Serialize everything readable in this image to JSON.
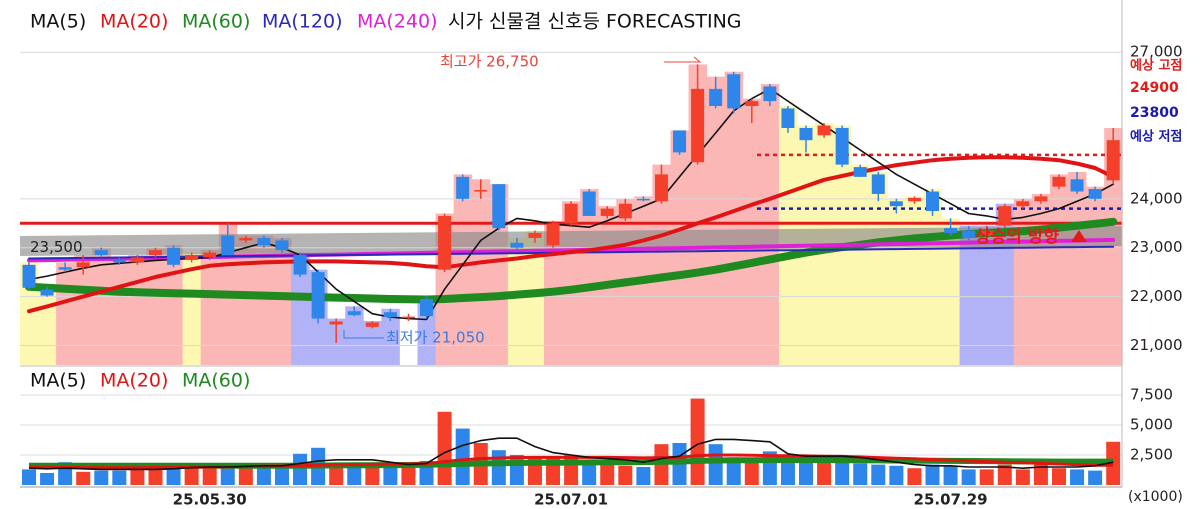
{
  "chart_data": [
    {
      "type": "candlestick",
      "title": "시가 신물결 신호등 FORECASTING",
      "open": [
        22650,
        22140,
        22600,
        22600,
        22950,
        22750,
        22700,
        22850,
        23000,
        22750,
        22800,
        23250,
        23150,
        23200,
        23150,
        22850,
        22500,
        21430,
        21700,
        21380,
        21680,
        21560,
        21950,
        22550,
        24450,
        24150,
        24300,
        23100,
        23200,
        23050,
        23500,
        24150,
        23650,
        23600,
        24000,
        23950,
        25400,
        24750,
        26250,
        26550,
        25900,
        26300,
        25850,
        25450,
        25300,
        25450,
        24650,
        24500,
        23950,
        23950,
        24150,
        23400,
        23350,
        23250,
        23450,
        23850,
        23950,
        24250,
        24400,
        24200,
        24380
      ],
      "high": [
        22700,
        22200,
        22700,
        22850,
        23000,
        22800,
        22850,
        23000,
        23050,
        22900,
        22950,
        23500,
        23250,
        23250,
        23200,
        22900,
        22550,
        21550,
        21800,
        21500,
        21750,
        21650,
        22000,
        23700,
        24500,
        24400,
        24300,
        23200,
        23350,
        23550,
        23950,
        24200,
        23850,
        24000,
        24050,
        24700,
        25400,
        26750,
        26500,
        26600,
        26050,
        26350,
        25900,
        25500,
        25550,
        25500,
        24700,
        24550,
        24000,
        24050,
        24200,
        23600,
        23450,
        23450,
        23900,
        24000,
        24100,
        24500,
        24550,
        24250,
        25450
      ],
      "low": [
        22150,
        22000,
        22500,
        22450,
        22800,
        22650,
        22650,
        22800,
        22600,
        22700,
        22750,
        22850,
        23100,
        23000,
        22900,
        22400,
        21450,
        21050,
        21600,
        21350,
        21500,
        21500,
        21550,
        22500,
        23950,
        24000,
        23350,
        22950,
        23100,
        23000,
        23450,
        23650,
        23600,
        23550,
        23950,
        23900,
        24900,
        24700,
        25850,
        25750,
        25550,
        25900,
        25350,
        24950,
        25250,
        24650,
        24450,
        23950,
        23700,
        23900,
        23650,
        23250,
        23150,
        23150,
        23400,
        23800,
        23900,
        24200,
        24100,
        23950,
        24300
      ],
      "close": [
        22180,
        22020,
        22550,
        22700,
        22850,
        22700,
        22800,
        22950,
        22650,
        22850,
        22900,
        22850,
        23200,
        23050,
        22950,
        22450,
        21550,
        21490,
        21620,
        21470,
        21580,
        21590,
        21600,
        23650,
        24000,
        24180,
        23400,
        23000,
        23300,
        23500,
        23900,
        23650,
        23800,
        23900,
        23980,
        24500,
        24950,
        26250,
        25900,
        25850,
        26000,
        26000,
        25450,
        25200,
        25500,
        24700,
        24450,
        24100,
        23850,
        24020,
        23750,
        23300,
        23200,
        23350,
        23850,
        23950,
        24050,
        24450,
        24150,
        24000,
        25200
      ],
      "signal": [
        "yellow",
        "yellow",
        "red",
        "red",
        "red",
        "red",
        "red",
        "red",
        "red",
        "yellow",
        "red",
        "red",
        "red",
        "red",
        "red",
        "blue",
        "blue",
        "blue",
        "blue",
        "blue",
        "blue",
        null,
        "blue",
        "red",
        "red",
        "red",
        "red",
        "yellow",
        "yellow",
        "red",
        "red",
        "red",
        "red",
        "red",
        "red",
        "red",
        "red",
        "red",
        "red",
        "red",
        "red",
        "red",
        "yellow",
        "yellow",
        "yellow",
        "yellow",
        "yellow",
        "yellow",
        "yellow",
        "yellow",
        "yellow",
        "yellow",
        "blue",
        "blue",
        "blue",
        "red",
        "red",
        "red",
        "red",
        "red",
        "red"
      ],
      "signal_colors": {
        "red": "#fbb6b6",
        "yellow": "#fcf8b2",
        "blue": "#b2b2f6"
      },
      "up_color": "#f4402a",
      "down_color": "#2e86ea",
      "series": [
        {
          "name": "MA(5)",
          "color": "#111111",
          "values": [
            22350,
            22420,
            22500,
            22580,
            22650,
            22680,
            22710,
            22740,
            22760,
            22780,
            22800,
            22900,
            23000,
            23100,
            23000,
            22850,
            22500,
            22150,
            21900,
            21650,
            21580,
            21550,
            21530,
            22150,
            22650,
            23150,
            23400,
            23600,
            23550,
            23480,
            23450,
            23420,
            23550,
            23700,
            23850,
            24000,
            24450,
            24900,
            25350,
            25800,
            26050,
            26250,
            26000,
            25750,
            25500,
            25250,
            25000,
            24750,
            24500,
            24300,
            24100,
            23900,
            23700,
            23650,
            23580,
            23620,
            23700,
            23800,
            23950,
            24100,
            24300
          ]
        },
        {
          "name": "MA(20)",
          "color": "#e01414",
          "values": [
            21700,
            21800,
            21900,
            22000,
            22100,
            22200,
            22300,
            22400,
            22480,
            22560,
            22630,
            22660,
            22680,
            22700,
            22710,
            22720,
            22720,
            22720,
            22710,
            22700,
            22690,
            22660,
            22620,
            22600,
            22650,
            22700,
            22740,
            22780,
            22830,
            22870,
            22910,
            22950,
            23000,
            23060,
            23150,
            23250,
            23370,
            23500,
            23620,
            23750,
            23880,
            24000,
            24130,
            24260,
            24390,
            24470,
            24550,
            24620,
            24690,
            24740,
            24790,
            24820,
            24840,
            24850,
            24850,
            24840,
            24820,
            24790,
            24720,
            24630,
            24450
          ]
        },
        {
          "name": "MA(60)",
          "color": "#1f8a1f",
          "values": [
            22200,
            22180,
            22160,
            22140,
            22120,
            22100,
            22090,
            22080,
            22070,
            22060,
            22050,
            22040,
            22030,
            22020,
            22010,
            22000,
            21990,
            21980,
            21970,
            21960,
            21950,
            21945,
            21940,
            21950,
            21970,
            21990,
            22010,
            22040,
            22070,
            22100,
            22140,
            22190,
            22240,
            22290,
            22340,
            22390,
            22440,
            22490,
            22550,
            22620,
            22690,
            22760,
            22830,
            22900,
            22960,
            23010,
            23060,
            23110,
            23150,
            23190,
            23220,
            23250,
            23280,
            23300,
            23320,
            23340,
            23370,
            23410,
            23450,
            23490,
            23530
          ]
        },
        {
          "name": "MA(120)",
          "color": "#2a2ab8",
          "values": [
            22780,
            22784,
            22788,
            22792,
            22796,
            22800,
            22804,
            22808,
            22812,
            22816,
            22820,
            22824,
            22828,
            22832,
            22836,
            22840,
            22844,
            22848,
            22852,
            22856,
            22860,
            22864,
            22868,
            22872,
            22876,
            22880,
            22884,
            22888,
            22892,
            22896,
            22900,
            22904,
            22908,
            22912,
            22916,
            22920,
            22924,
            22928,
            22932,
            22936,
            22940,
            22944,
            22948,
            22952,
            22956,
            22960,
            22964,
            22968,
            22972,
            22976,
            22980,
            22984,
            22988,
            22992,
            22996,
            23000,
            23004,
            23008,
            23012,
            23016,
            23020
          ]
        },
        {
          "name": "MA(240)",
          "color": "#e020d8",
          "values": [
            22740,
            22747,
            22754,
            22761,
            22768,
            22775,
            22782,
            22789,
            22796,
            22803,
            22810,
            22817,
            22824,
            22831,
            22838,
            22845,
            22852,
            22859,
            22866,
            22873,
            22880,
            22887,
            22894,
            22901,
            22908,
            22915,
            22922,
            22929,
            22936,
            22943,
            22950,
            22957,
            22964,
            22971,
            22978,
            22985,
            22992,
            22999,
            23006,
            23013,
            23020,
            23027,
            23034,
            23041,
            23048,
            23055,
            23062,
            23069,
            23076,
            23083,
            23090,
            23097,
            23104,
            23111,
            23118,
            23125,
            23132,
            23139,
            23146,
            23153,
            23160
          ]
        }
      ],
      "ylim": [
        20600,
        27250
      ],
      "yticks": [
        {
          "value": 27000,
          "label": "27,000"
        },
        {
          "value": 24000,
          "label": "24,000"
        },
        {
          "value": 23000,
          "label": "23,000"
        },
        {
          "value": 22000,
          "label": "22,000"
        },
        {
          "value": 21000,
          "label": "21,000"
        }
      ],
      "grid": true,
      "high_label": "최고가 26,750",
      "low_label": "최저가 21,050",
      "reference_line": {
        "value": 23500,
        "label": "23,500",
        "color": "#e41a1a"
      },
      "forecast_high": {
        "label": "예상 고점",
        "value": 24900,
        "color": "#e41a1a"
      },
      "forecast_low": {
        "label": "예상 저점",
        "value": 23800,
        "color": "#1a1ab4"
      },
      "direction_label": "상승의 방향"
    },
    {
      "type": "bar",
      "unit": "(x1000)",
      "categories": [
        null,
        null,
        null,
        null,
        null,
        null,
        null,
        null,
        null,
        null,
        "25.05.30",
        null,
        null,
        null,
        null,
        null,
        null,
        null,
        null,
        null,
        null,
        null,
        null,
        null,
        null,
        null,
        null,
        null,
        null,
        null,
        "25.07.01",
        null,
        null,
        null,
        null,
        null,
        null,
        null,
        null,
        null,
        null,
        null,
        null,
        null,
        null,
        null,
        null,
        null,
        null,
        null,
        null,
        "25.07.29",
        null,
        null,
        null,
        null,
        null,
        null,
        null,
        null,
        null
      ],
      "values": [
        1300,
        1000,
        1900,
        1100,
        1200,
        1200,
        1300,
        1400,
        1500,
        1800,
        1500,
        1400,
        1800,
        1700,
        1400,
        2600,
        3100,
        1600,
        1600,
        1800,
        1500,
        1900,
        2000,
        6100,
        4700,
        3500,
        2900,
        2500,
        2300,
        2300,
        2500,
        2000,
        1900,
        1600,
        1500,
        3400,
        3500,
        7200,
        3400,
        2300,
        2100,
        2800,
        2200,
        2500,
        2400,
        2000,
        1800,
        1700,
        1600,
        1400,
        1700,
        1600,
        1300,
        1300,
        1700,
        1300,
        2000,
        1400,
        1300,
        1200,
        3600
      ],
      "series": [
        {
          "name": "MA(5)",
          "color": "#111111",
          "values": [
            1400,
            1350,
            1400,
            1350,
            1300,
            1300,
            1300,
            1300,
            1350,
            1450,
            1500,
            1500,
            1550,
            1600,
            1600,
            1800,
            2000,
            2100,
            2100,
            2100,
            1900,
            1700,
            1800,
            2700,
            3300,
            3700,
            3900,
            3900,
            3200,
            2700,
            2500,
            2300,
            2200,
            2100,
            1900,
            2200,
            2400,
            3400,
            3800,
            3800,
            3700,
            3600,
            2600,
            2400,
            2400,
            2400,
            2300,
            2100,
            1900,
            1700,
            1600,
            1600,
            1500,
            1500,
            1500,
            1400,
            1500,
            1500,
            1500,
            1600,
            1900
          ]
        },
        {
          "name": "MA(20)",
          "color": "#e01414",
          "values": [
            1500,
            1480,
            1470,
            1460,
            1450,
            1450,
            1450,
            1460,
            1470,
            1480,
            1500,
            1520,
            1540,
            1560,
            1580,
            1600,
            1650,
            1680,
            1700,
            1720,
            1740,
            1760,
            1780,
            1950,
            2100,
            2200,
            2250,
            2280,
            2300,
            2300,
            2300,
            2300,
            2300,
            2280,
            2260,
            2280,
            2300,
            2450,
            2500,
            2500,
            2480,
            2450,
            2430,
            2420,
            2400,
            2380,
            2330,
            2280,
            2230,
            2180,
            2120,
            2060,
            2000,
            1950,
            1900,
            1850,
            1800,
            1750,
            1700,
            1650,
            1650
          ]
        },
        {
          "name": "MA(60)",
          "color": "#1f8a1f",
          "values": [
            1600,
            1600,
            1600,
            1600,
            1600,
            1600,
            1600,
            1600,
            1600,
            1600,
            1600,
            1600,
            1600,
            1600,
            1600,
            1610,
            1620,
            1630,
            1640,
            1650,
            1660,
            1670,
            1680,
            1720,
            1760,
            1790,
            1810,
            1830,
            1850,
            1860,
            1870,
            1880,
            1890,
            1900,
            1910,
            1930,
            1950,
            2010,
            2040,
            2060,
            2070,
            2080,
            2080,
            2080,
            2080,
            2070,
            2060,
            2050,
            2040,
            2030,
            2020,
            2010,
            2000,
            1990,
            1980,
            1970,
            1960,
            1950,
            1950,
            1950,
            1950
          ]
        }
      ],
      "ylim": [
        0,
        9580
      ],
      "yticks": [
        {
          "value": 7500,
          "label": "7,500"
        },
        {
          "value": 5000,
          "label": "5,000"
        },
        {
          "value": 2500,
          "label": "2,500"
        }
      ],
      "grid": true
    }
  ]
}
